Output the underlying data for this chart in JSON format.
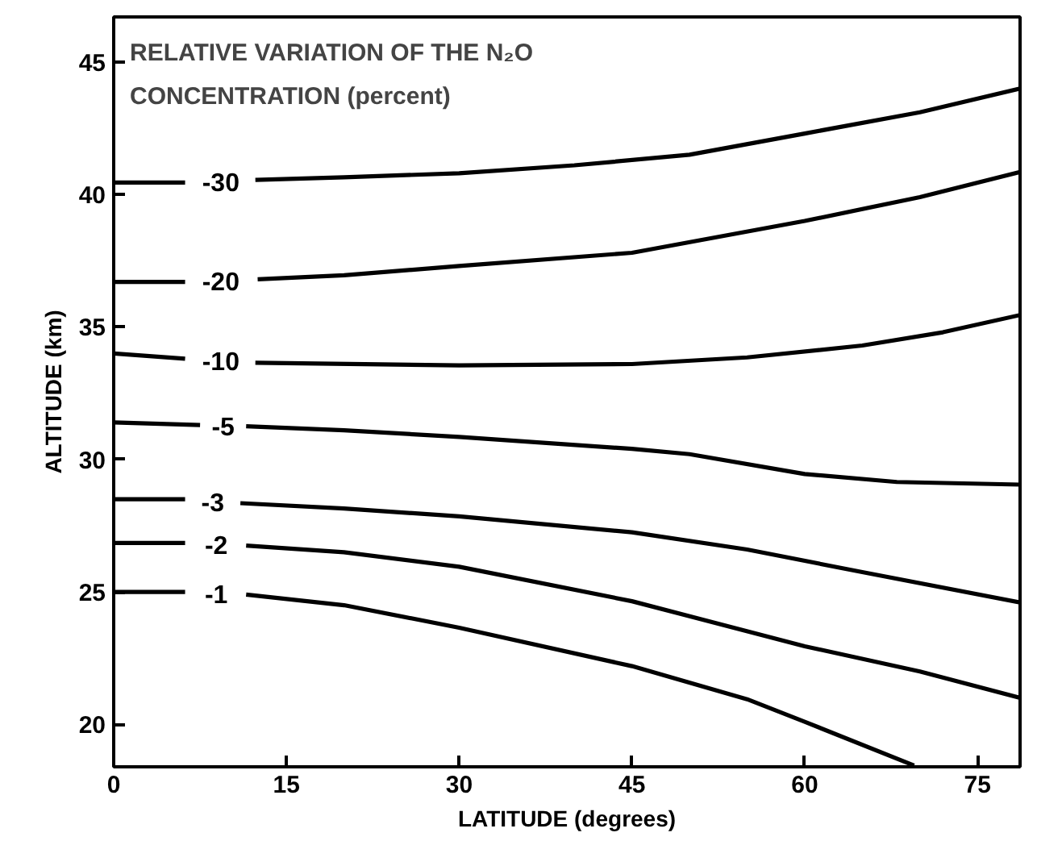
{
  "chart_data": {
    "type": "line",
    "xlabel": "LATITUDE (degrees)",
    "ylabel": "ALTITUDE (km)",
    "annotations": [
      "RELATIVE VARIATION OF THE N₂O\nCONCENTRATION (percent)"
    ],
    "xlim": [
      0,
      78.7
    ],
    "ylim": [
      18.4,
      46.7
    ],
    "xticks": [
      0,
      15,
      30,
      45,
      60,
      75
    ],
    "yticks": [
      20,
      25,
      30,
      35,
      40,
      45
    ],
    "grid": false,
    "marker": "none",
    "line_style": "solid",
    "series": [
      {
        "name": "-30",
        "color": "#000000",
        "x": [
          0,
          6.2,
          9.3,
          12.3,
          20,
          30,
          40,
          50,
          60,
          70,
          78.7
        ],
        "values": [
          40.45,
          40.45,
          null,
          40.55,
          40.65,
          40.8,
          41.1,
          41.5,
          42.3,
          43.1,
          44.0
        ]
      },
      {
        "name": "-20",
        "color": "#000000",
        "x": [
          0,
          6.2,
          9.3,
          12.5,
          20,
          30,
          45,
          60,
          70,
          78.7
        ],
        "values": [
          36.7,
          36.7,
          null,
          36.8,
          36.95,
          37.3,
          37.8,
          39.0,
          39.9,
          40.85
        ]
      },
      {
        "name": "-10",
        "color": "#000000",
        "x": [
          0,
          6.2,
          9.3,
          12.3,
          30,
          45,
          55,
          65,
          72,
          78.7
        ],
        "values": [
          34.0,
          33.8,
          null,
          33.65,
          33.55,
          33.6,
          33.85,
          34.3,
          34.8,
          35.45
        ]
      },
      {
        "name": "-5",
        "color": "#000000",
        "x": [
          0,
          7.5,
          9.5,
          11.5,
          20,
          30,
          45,
          50,
          60,
          68,
          78.7
        ],
        "values": [
          31.4,
          31.3,
          null,
          31.25,
          31.1,
          30.85,
          30.4,
          30.2,
          29.45,
          29.15,
          29.05
        ]
      },
      {
        "name": "-3",
        "color": "#000000",
        "x": [
          0,
          6.2,
          8.6,
          11,
          20,
          30,
          45,
          55,
          65,
          78.7
        ],
        "values": [
          28.5,
          28.5,
          null,
          28.35,
          28.15,
          27.85,
          27.25,
          26.6,
          25.75,
          24.6
        ]
      },
      {
        "name": "-2",
        "color": "#000000",
        "x": [
          0,
          6.2,
          8.9,
          11.5,
          20,
          30,
          45,
          60,
          70,
          78.7
        ],
        "values": [
          26.85,
          26.85,
          null,
          26.75,
          26.5,
          25.95,
          24.65,
          22.95,
          22.0,
          21.0
        ]
      },
      {
        "name": "-1",
        "color": "#000000",
        "x": [
          0,
          6.2,
          8.9,
          11.5,
          20,
          30,
          45,
          55,
          60,
          69.5
        ],
        "values": [
          25.0,
          25.0,
          null,
          24.9,
          24.5,
          23.65,
          22.2,
          20.95,
          20.1,
          18.45
        ]
      }
    ]
  }
}
